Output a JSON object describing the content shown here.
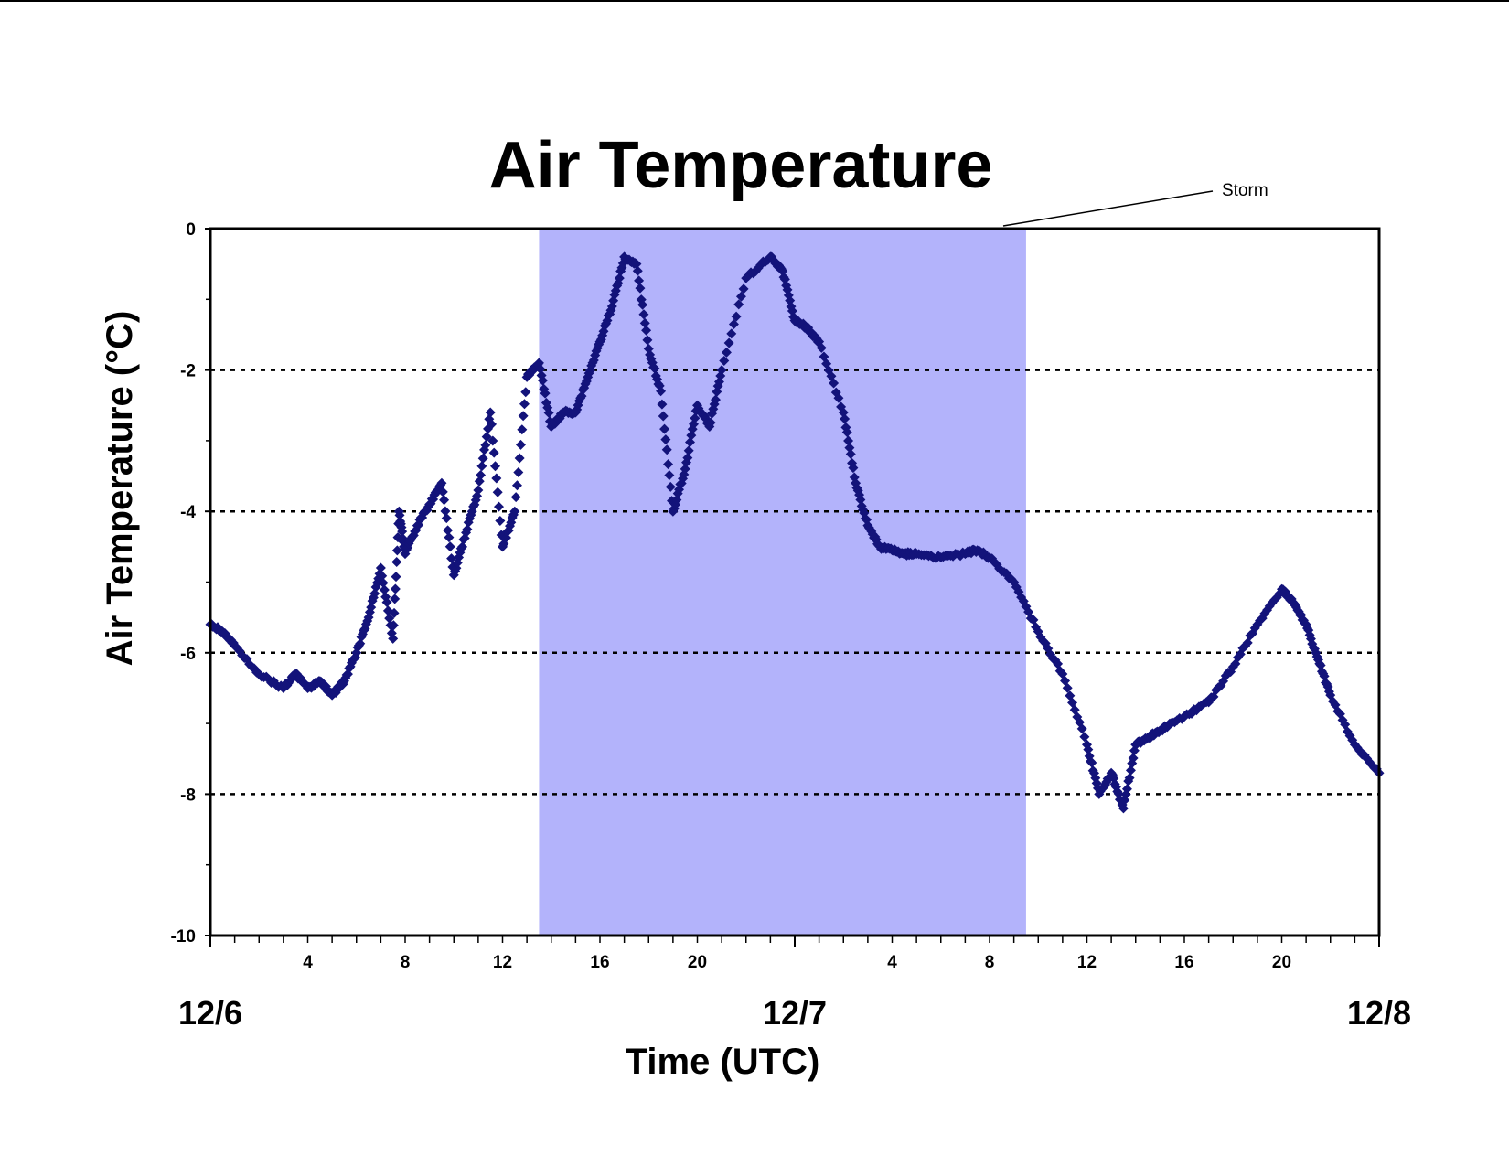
{
  "chart_data": {
    "type": "scatter",
    "title": "Air Temperature",
    "xlabel": "Time (UTC)",
    "ylabel": "Air Temperature (°C)",
    "ylim": [
      -10,
      0
    ],
    "xlim": [
      "12/6 00:00",
      "12/8 00:00"
    ],
    "y_ticks": [
      "0",
      "-2",
      "-4",
      "-6",
      "-8",
      "-10"
    ],
    "x_tick_labels": [
      {
        "hour": 4,
        "label": "4"
      },
      {
        "hour": 8,
        "label": "8"
      },
      {
        "hour": 12,
        "label": "12"
      },
      {
        "hour": 16,
        "label": "16"
      },
      {
        "hour": 20,
        "label": "20"
      },
      {
        "hour": 28,
        "label": "4"
      },
      {
        "hour": 32,
        "label": "8"
      },
      {
        "hour": 36,
        "label": "12"
      },
      {
        "hour": 40,
        "label": "16"
      },
      {
        "hour": 44,
        "label": "20"
      }
    ],
    "date_labels": [
      {
        "hour": 0,
        "label": "12/6"
      },
      {
        "hour": 24,
        "label": "12/7"
      },
      {
        "hour": 48,
        "label": "12/8"
      }
    ],
    "grid": "horizontal dotted at -2, -4, -6, -8",
    "shaded_region": {
      "label": "Storm",
      "start": "12/6 13:30",
      "end": "12/7 09:30",
      "color": "#b3b3fb"
    },
    "marker_color": "#13137a",
    "series": [
      {
        "name": "",
        "x": [
          "12/6 00:00",
          "12/6 00:30",
          "12/6 01:00",
          "12/6 02:00",
          "12/6 03:00",
          "12/6 03:30",
          "12/6 04:00",
          "12/6 04:30",
          "12/6 05:00",
          "12/6 05:30",
          "12/6 06:00",
          "12/6 06:30",
          "12/6 07:00",
          "12/6 07:30",
          "12/6 07:45",
          "12/6 08:00",
          "12/6 08:30",
          "12/6 09:00",
          "12/6 09:30",
          "12/6 10:00",
          "12/6 10:30",
          "12/6 11:00",
          "12/6 11:30",
          "12/6 12:00",
          "12/6 12:30",
          "12/6 13:00",
          "12/6 13:30",
          "12/6 14:00",
          "12/6 14:30",
          "12/6 15:00",
          "12/6 15:30",
          "12/6 16:00",
          "12/6 16:30",
          "12/6 17:00",
          "12/6 17:30",
          "12/6 18:00",
          "12/6 18:30",
          "12/6 19:00",
          "12/6 19:30",
          "12/6 20:00",
          "12/6 20:30",
          "12/6 21:00",
          "12/6 22:00",
          "12/6 23:00",
          "12/6 23:30",
          "12/7 00:00",
          "12/7 00:30",
          "12/7 01:00",
          "12/7 02:00",
          "12/7 02:30",
          "12/7 03:00",
          "12/7 03:30",
          "12/7 04:00",
          "12/7 04:30",
          "12/7 05:00",
          "12/7 06:00",
          "12/7 07:00",
          "12/7 07:30",
          "12/7 08:00",
          "12/7 09:00",
          "12/7 10:00",
          "12/7 11:00",
          "12/7 12:00",
          "12/7 12:30",
          "12/7 13:00",
          "12/7 13:30",
          "12/7 14:00",
          "12/7 14:30",
          "12/7 15:00",
          "12/7 16:00",
          "12/7 17:00",
          "12/7 18:00",
          "12/7 19:00",
          "12/7 20:00",
          "12/7 20:30",
          "12/7 21:00",
          "12/7 21:30",
          "12/7 22:00",
          "12/7 23:00",
          "12/8 00:00"
        ],
        "y": [
          -5.6,
          -5.7,
          -5.9,
          -6.3,
          -6.5,
          -6.3,
          -6.5,
          -6.4,
          -6.6,
          -6.4,
          -6.0,
          -5.5,
          -4.8,
          -5.8,
          -4.0,
          -4.6,
          -4.2,
          -3.9,
          -3.6,
          -4.9,
          -4.3,
          -3.7,
          -2.6,
          -4.5,
          -4.0,
          -2.1,
          -1.9,
          -2.8,
          -2.6,
          -2.6,
          -2.1,
          -1.6,
          -1.1,
          -0.4,
          -0.5,
          -1.7,
          -2.3,
          -4.0,
          -3.4,
          -2.5,
          -2.8,
          -2.0,
          -0.7,
          -0.4,
          -0.6,
          -1.3,
          -1.4,
          -1.6,
          -2.6,
          -3.6,
          -4.2,
          -4.5,
          -4.55,
          -4.6,
          -4.6,
          -4.65,
          -4.6,
          -4.55,
          -4.65,
          -5.0,
          -5.7,
          -6.3,
          -7.3,
          -8.0,
          -7.7,
          -8.2,
          -7.3,
          -7.2,
          -7.1,
          -6.9,
          -6.7,
          -6.2,
          -5.6,
          -5.1,
          -5.3,
          -5.6,
          -6.1,
          -6.6,
          -7.3,
          -7.7
        ]
      }
    ],
    "annotations": [
      {
        "text": "Storm"
      }
    ]
  }
}
